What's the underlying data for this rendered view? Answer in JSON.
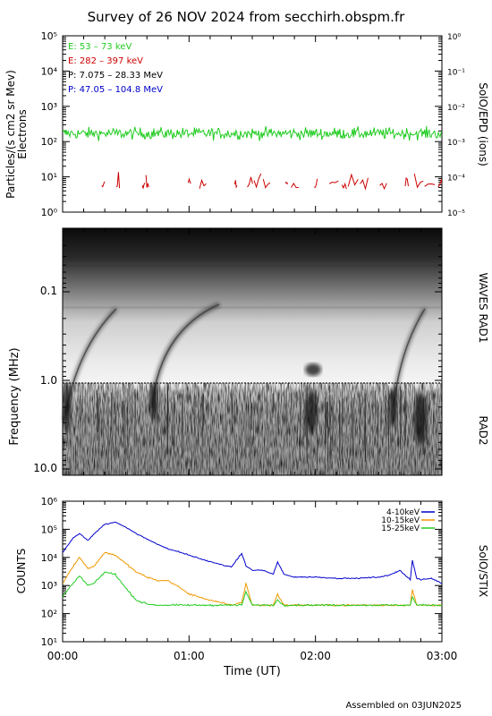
{
  "title": "Survey of 26 NOV 2024 from secchirh.obspm.fr",
  "footer": "Assembled on 03JUN2025",
  "colors": {
    "electrons_low": "#22cc22",
    "electrons_high": "#cc0000",
    "protons_low": "#000000",
    "protons_high": "#0000cc",
    "stix_4_10": "#0000cc",
    "stix_10_15": "#ee9900",
    "stix_15_25": "#22cc22"
  },
  "chart_data": [
    {
      "type": "line",
      "ylabel": "Particles/(s cm2 sr Mev)",
      "ylabel2": "Electrons",
      "right_label": "SolO/EPD (ions)",
      "yscale": "log",
      "ylim": [
        1,
        100000
      ],
      "y_ticks": [
        "10⁰",
        "10¹",
        "10²",
        "10³",
        "10⁴",
        "10⁵"
      ],
      "right_ylim": [
        1e-05,
        1
      ],
      "right_ticks": [
        "10⁻⁵",
        "10⁻⁴",
        "10⁻³",
        "10⁻²",
        "10⁻¹",
        "10⁰"
      ],
      "legend": [
        "E: 53 – 73 keV",
        "E: 282 – 397 keV",
        "P: 7.075 – 28.33 MeV",
        "P: 47.05 – 104.8 MeV"
      ],
      "series": [
        {
          "name": "E: 53 – 73 keV",
          "mean": 170,
          "min": 25,
          "max": 450
        },
        {
          "name": "E: 282 – 397 keV",
          "mean": 6,
          "min": 4,
          "max": 14
        }
      ]
    },
    {
      "type": "heatmap",
      "ylabel": "Frequency (MHz)",
      "right_label_top": "WAVES RAD1",
      "right_label_bottom": "RAD2",
      "y_ticks": [
        "0.1",
        "1.0",
        "10.0"
      ],
      "ylim_mhz": [
        0.02,
        14
      ]
    },
    {
      "type": "line",
      "ylabel": "COUNTS",
      "right_label": "SolO/STIX",
      "xlabel": "Time (UT)",
      "yscale": "log",
      "ylim": [
        10,
        1000000
      ],
      "y_ticks": [
        "10¹",
        "10²",
        "10³",
        "10⁴",
        "10⁵",
        "10⁶"
      ],
      "x_ticks": [
        "00:00",
        "01:00",
        "02:00",
        "03:00"
      ],
      "x": [
        "00:00",
        "00:05",
        "00:08",
        "00:12",
        "00:15",
        "00:20",
        "00:25",
        "00:30",
        "00:35",
        "00:40",
        "00:45",
        "00:50",
        "00:55",
        "01:00",
        "01:10",
        "01:20",
        "01:25",
        "01:27",
        "01:30",
        "01:35",
        "01:40",
        "01:42",
        "01:45",
        "01:50",
        "02:00",
        "02:10",
        "02:20",
        "02:30",
        "02:35",
        "02:40",
        "02:45",
        "02:46",
        "02:48",
        "02:50",
        "02:55",
        "03:00"
      ],
      "series": [
        {
          "name": "4-10keV",
          "values": [
            15000,
            50000,
            70000,
            40000,
            70000,
            150000,
            180000,
            120000,
            70000,
            45000,
            30000,
            20000,
            16000,
            12000,
            7000,
            4500,
            14000,
            5000,
            3500,
            3500,
            2500,
            7000,
            2500,
            2000,
            2000,
            1800,
            1800,
            2000,
            2300,
            3500,
            1600,
            8000,
            1800,
            1600,
            1800,
            1200
          ]
        },
        {
          "name": "10-15keV",
          "values": [
            1200,
            5000,
            10000,
            4000,
            5000,
            15000,
            12000,
            6000,
            3000,
            2000,
            1500,
            1500,
            900,
            500,
            300,
            200,
            250,
            1200,
            200,
            200,
            200,
            500,
            200,
            200,
            200,
            200,
            200,
            200,
            200,
            200,
            200,
            700,
            200,
            200,
            200,
            200
          ]
        },
        {
          "name": "15-25keV",
          "values": [
            400,
            1200,
            2200,
            1000,
            1200,
            3000,
            2500,
            800,
            300,
            220,
            200,
            200,
            200,
            200,
            200,
            200,
            200,
            600,
            200,
            200,
            200,
            300,
            200,
            200,
            200,
            200,
            200,
            200,
            200,
            200,
            200,
            400,
            200,
            200,
            200,
            200
          ]
        }
      ]
    }
  ]
}
